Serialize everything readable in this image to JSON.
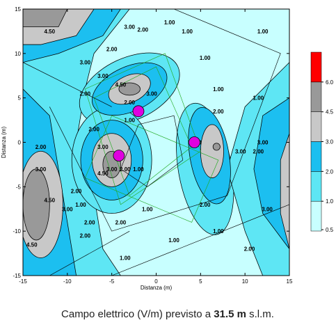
{
  "chart_data": {
    "type": "contour",
    "title_parts": [
      "Campo elettrico (V/m) previsto a",
      "31.5 m",
      "s.l.m."
    ],
    "xlabel": "Distanza (m)",
    "ylabel": "Distanza (m)",
    "xlim": [
      -15,
      15
    ],
    "ylim": [
      -15,
      15
    ],
    "xticks": [
      -15,
      -10,
      -5,
      0,
      5,
      10,
      15
    ],
    "yticks": [
      -15,
      -10,
      -5,
      0,
      5,
      10,
      15
    ],
    "levels": [
      {
        "value": 0.5,
        "label": "0.5"
      },
      {
        "value": 1,
        "label": "1.0"
      },
      {
        "value": 2,
        "label": "2.0"
      },
      {
        "value": 3,
        "label": "3.0"
      },
      {
        "value": 4.5,
        "label": "4.5"
      },
      {
        "value": 6,
        "label": "6.0"
      }
    ],
    "level_colors": [
      "#c8ffff",
      "#5ee6f4",
      "#1cbff0",
      "#c8c8c8",
      "#999999",
      "#ff0000"
    ],
    "markers": {
      "x": [
        -2,
        -4.2,
        4.3
      ],
      "y": [
        3.5,
        -1.5,
        0
      ],
      "color": "#e000e0"
    },
    "contour_labels": [
      {
        "x": -12,
        "y": 12.5,
        "text": "4.50"
      },
      {
        "x": -8,
        "y": 9,
        "text": "3.00"
      },
      {
        "x": -5,
        "y": 10.5,
        "text": "2.00"
      },
      {
        "x": -3,
        "y": 13,
        "text": "3.00"
      },
      {
        "x": -1.5,
        "y": 12.7,
        "text": "2.00"
      },
      {
        "x": 1.5,
        "y": 13.5,
        "text": "1.00"
      },
      {
        "x": 3.5,
        "y": 12.5,
        "text": "1.00"
      },
      {
        "x": 12,
        "y": 12.5,
        "text": "1.00"
      },
      {
        "x": 5.5,
        "y": 9.5,
        "text": "1.00"
      },
      {
        "x": -8,
        "y": 5.5,
        "text": "2.00"
      },
      {
        "x": -6,
        "y": 7.5,
        "text": "3.00"
      },
      {
        "x": -4,
        "y": 6.5,
        "text": "4.50"
      },
      {
        "x": -0.5,
        "y": 5.5,
        "text": "3.00"
      },
      {
        "x": -3,
        "y": 4.5,
        "text": "2.00"
      },
      {
        "x": -3,
        "y": 2.5,
        "text": "1.00"
      },
      {
        "x": -7,
        "y": 1.5,
        "text": "2.00"
      },
      {
        "x": -13,
        "y": -0.5,
        "text": "2.00"
      },
      {
        "x": -13,
        "y": -3,
        "text": "3.00"
      },
      {
        "x": -12,
        "y": -6.5,
        "text": "4.50"
      },
      {
        "x": -9,
        "y": -5.5,
        "text": "2.00"
      },
      {
        "x": -8.5,
        "y": -7,
        "text": "1.00"
      },
      {
        "x": -10,
        "y": -7.5,
        "text": "3.00"
      },
      {
        "x": -7.5,
        "y": -9,
        "text": "2.00"
      },
      {
        "x": -5,
        "y": -3,
        "text": "3.00"
      },
      {
        "x": -6,
        "y": -3.5,
        "text": "4.50"
      },
      {
        "x": -6,
        "y": -0.5,
        "text": "3.00"
      },
      {
        "x": -3.5,
        "y": -3,
        "text": "2.00"
      },
      {
        "x": -2,
        "y": -3,
        "text": "1.00"
      },
      {
        "x": -4,
        "y": -9,
        "text": "2.00"
      },
      {
        "x": -1,
        "y": -7.5,
        "text": "1.00"
      },
      {
        "x": -3.5,
        "y": -13,
        "text": "1.00"
      },
      {
        "x": 2,
        "y": -11,
        "text": "1.00"
      },
      {
        "x": -14,
        "y": -11.5,
        "text": "4.50"
      },
      {
        "x": -8,
        "y": -10.5,
        "text": "2.00"
      },
      {
        "x": 7,
        "y": 3.5,
        "text": "2.00"
      },
      {
        "x": 7,
        "y": 6,
        "text": "1.00"
      },
      {
        "x": 4.5,
        "y": 0,
        "text": "3.00"
      },
      {
        "x": 9.5,
        "y": -1,
        "text": "3.00"
      },
      {
        "x": 5.5,
        "y": -7,
        "text": "2.00"
      },
      {
        "x": 7,
        "y": -10,
        "text": "1.00"
      },
      {
        "x": 10.5,
        "y": -12,
        "text": "2.00"
      },
      {
        "x": 11.5,
        "y": -1,
        "text": "2.00"
      },
      {
        "x": 12,
        "y": 0,
        "text": "3.00"
      },
      {
        "x": 12.5,
        "y": -7.5,
        "text": "3.00"
      },
      {
        "x": 11.5,
        "y": 5,
        "text": "1.00"
      }
    ]
  }
}
